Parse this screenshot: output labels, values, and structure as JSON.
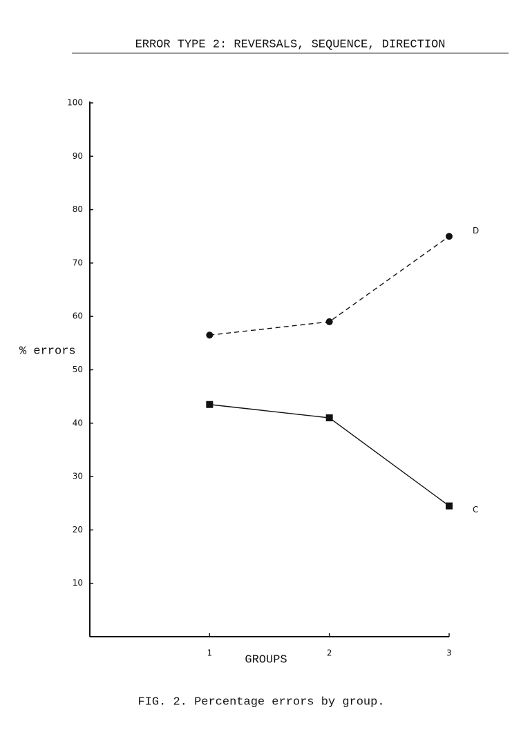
{
  "chart_data": {
    "type": "line",
    "title": "ERROR TYPE 2:  REVERSALS, SEQUENCE, DIRECTION",
    "ylabel": "% errors",
    "xlabel": "GROUPS",
    "caption": "FIG. 2.  Percentage errors by group.",
    "x": [
      1,
      2,
      3
    ],
    "series": [
      {
        "name": "D",
        "color": "#111111",
        "dashed": true,
        "marker": "circle",
        "values": [
          56.5,
          59,
          75
        ]
      },
      {
        "name": "C",
        "color": "#111111",
        "dashed": false,
        "marker": "square",
        "values": [
          43.5,
          41,
          24.5
        ]
      }
    ],
    "xlim": [
      0,
      3
    ],
    "xticks": [
      1,
      2,
      3
    ],
    "ylim": [
      0,
      100
    ],
    "yticks": [
      10,
      20,
      30,
      40,
      50,
      60,
      70,
      80,
      90,
      100
    ],
    "grid": false
  }
}
